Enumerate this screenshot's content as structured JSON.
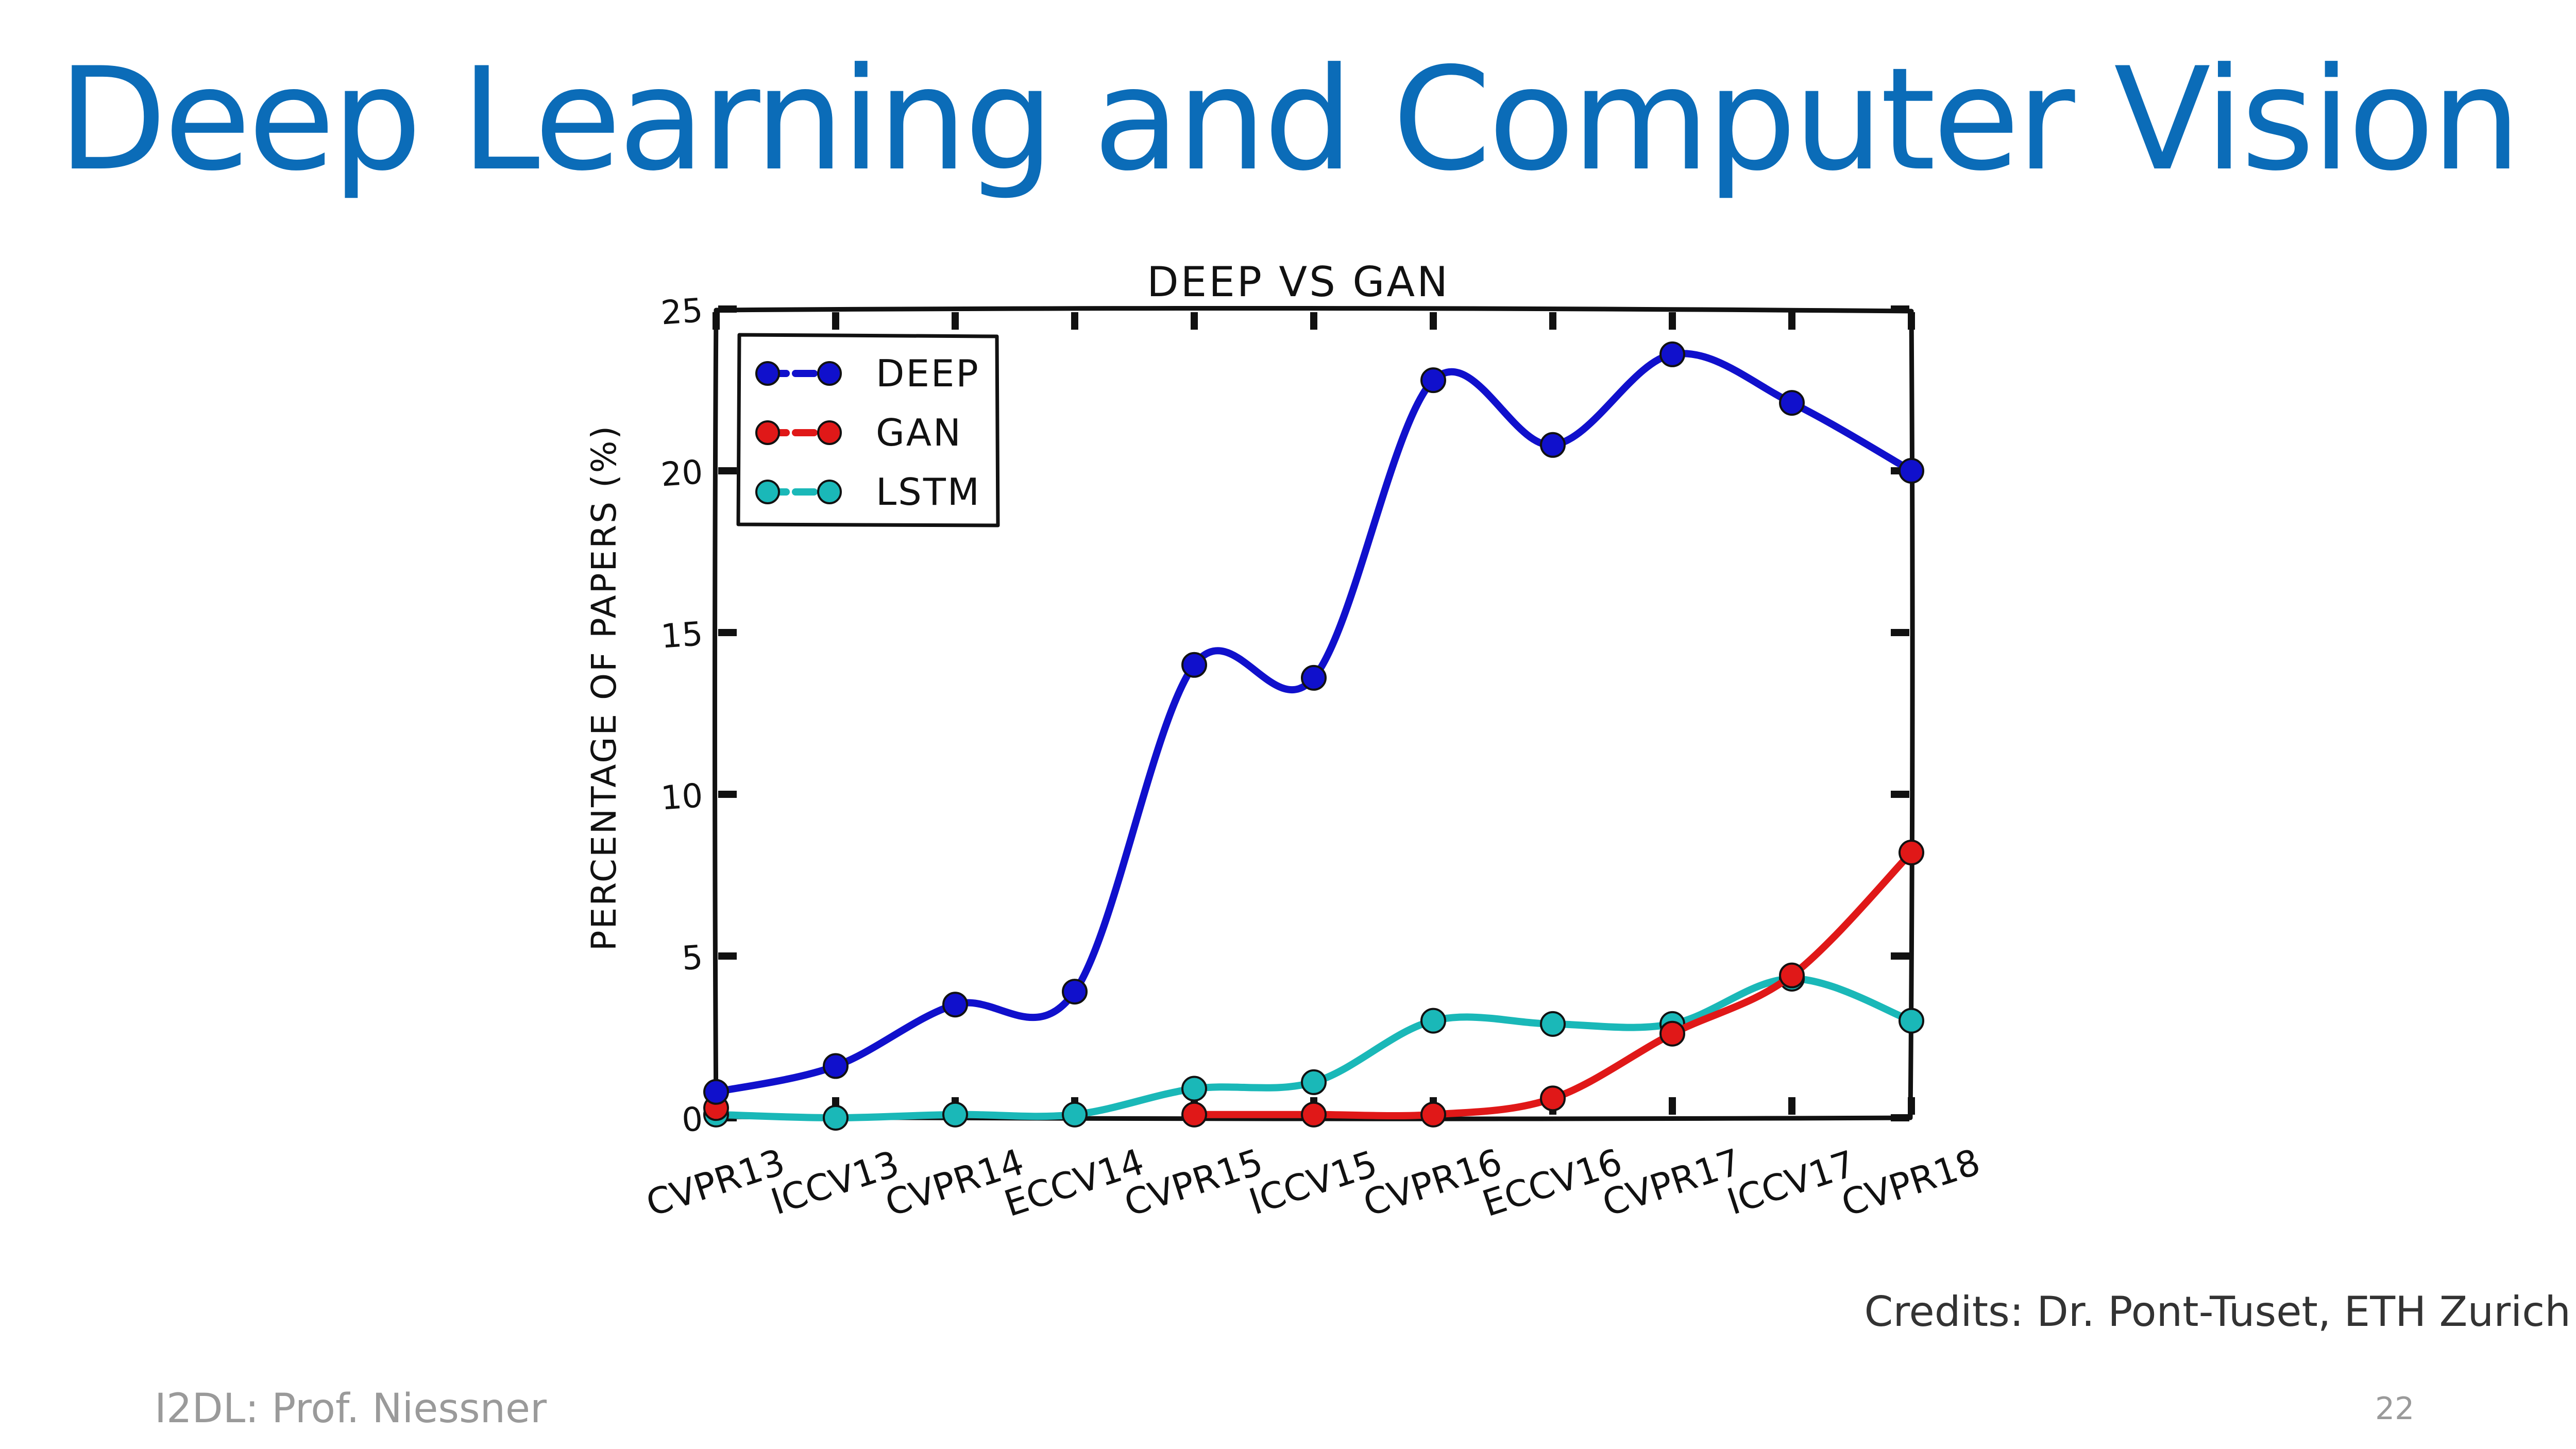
{
  "slide": {
    "title": "Deep Learning and Computer Vision",
    "credits": "Credits: Dr. Pont-Tuset, ETH Zurich",
    "footer": "I2DL: Prof. Niessner",
    "page_number": "22"
  },
  "chart_data": {
    "type": "line",
    "title": "DEEP VS GAN",
    "xlabel": "",
    "ylabel": "PERCENTAGE OF PAPERS (%)",
    "categories": [
      "CVPR13",
      "ICCV13",
      "CVPR14",
      "ECCV14",
      "CVPR15",
      "ICCV15",
      "CVPR16",
      "ECCV16",
      "CVPR17",
      "ICCV17",
      "CVPR18"
    ],
    "ylim": [
      0,
      25
    ],
    "yticks": [
      "0",
      "5",
      "10",
      "15",
      "20",
      "25"
    ],
    "legend_position": "top-left",
    "grid": false,
    "style": "xkcd",
    "series": [
      {
        "name": "DEEP",
        "color": "#1010cc",
        "values": [
          0.8,
          1.6,
          3.5,
          3.9,
          14.0,
          13.6,
          22.8,
          20.8,
          23.6,
          22.1,
          20.0
        ]
      },
      {
        "name": "GAN",
        "color": "#e01818",
        "values": [
          0.3,
          null,
          null,
          null,
          0.1,
          0.1,
          0.1,
          0.6,
          2.6,
          4.4,
          8.2
        ]
      },
      {
        "name": "LSTM",
        "color": "#1ab8b8",
        "values": [
          0.1,
          0.0,
          0.1,
          0.1,
          0.9,
          1.1,
          3.0,
          2.9,
          2.9,
          4.3,
          3.0
        ]
      }
    ]
  }
}
